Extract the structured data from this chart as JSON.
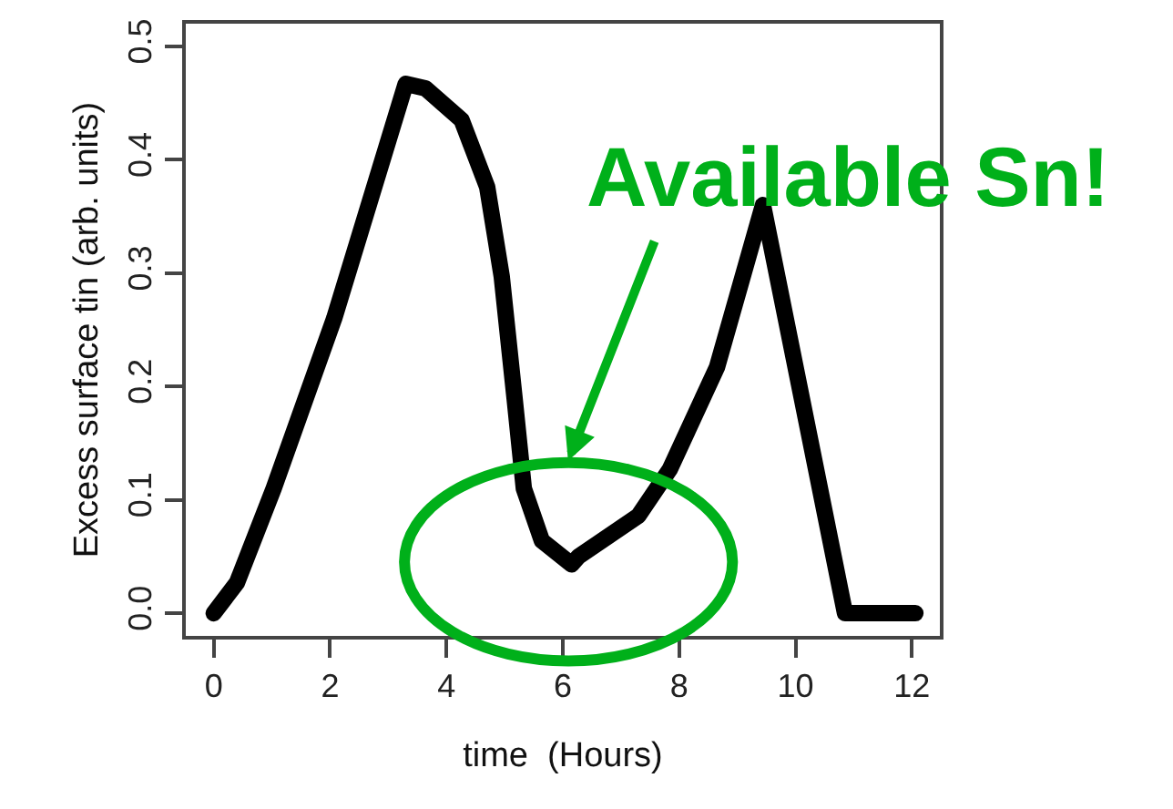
{
  "chart_data": {
    "type": "line",
    "xlabel": "time  (Hours)",
    "ylabel": "Excess surface tin (arb. units)",
    "x": [
      0,
      0.4,
      1.03,
      2.07,
      3.3,
      3.64,
      4.26,
      4.7,
      4.95,
      5.17,
      5.33,
      5.64,
      6.15,
      6.27,
      7.3,
      7.84,
      8.65,
      9.44,
      10.85,
      12.06
    ],
    "values": [
      0,
      0.027,
      0.11,
      0.26,
      0.467,
      0.463,
      0.435,
      0.376,
      0.297,
      0.19,
      0.11,
      0.064,
      0.043,
      0.05,
      0.086,
      0.127,
      0.217,
      0.36,
      0.0,
      0.0
    ],
    "color": "#000000",
    "xlim": [
      -0.48,
      12.48
    ],
    "ylim": [
      -0.02,
      0.52
    ],
    "xticks": [
      0,
      2,
      4,
      6,
      8,
      10,
      12
    ],
    "yticks": [
      {
        "value": 0,
        "label": "0.0"
      },
      {
        "value": 0.1,
        "label": "0.1"
      },
      {
        "value": 0.2,
        "label": "0.2"
      },
      {
        "value": 0.3,
        "label": "0.3"
      },
      {
        "value": 0.4,
        "label": "0.4"
      },
      {
        "value": 0.5,
        "label": "0.5"
      }
    ],
    "annotations": [
      "Available Sn!"
    ],
    "line_style": "solid"
  }
}
